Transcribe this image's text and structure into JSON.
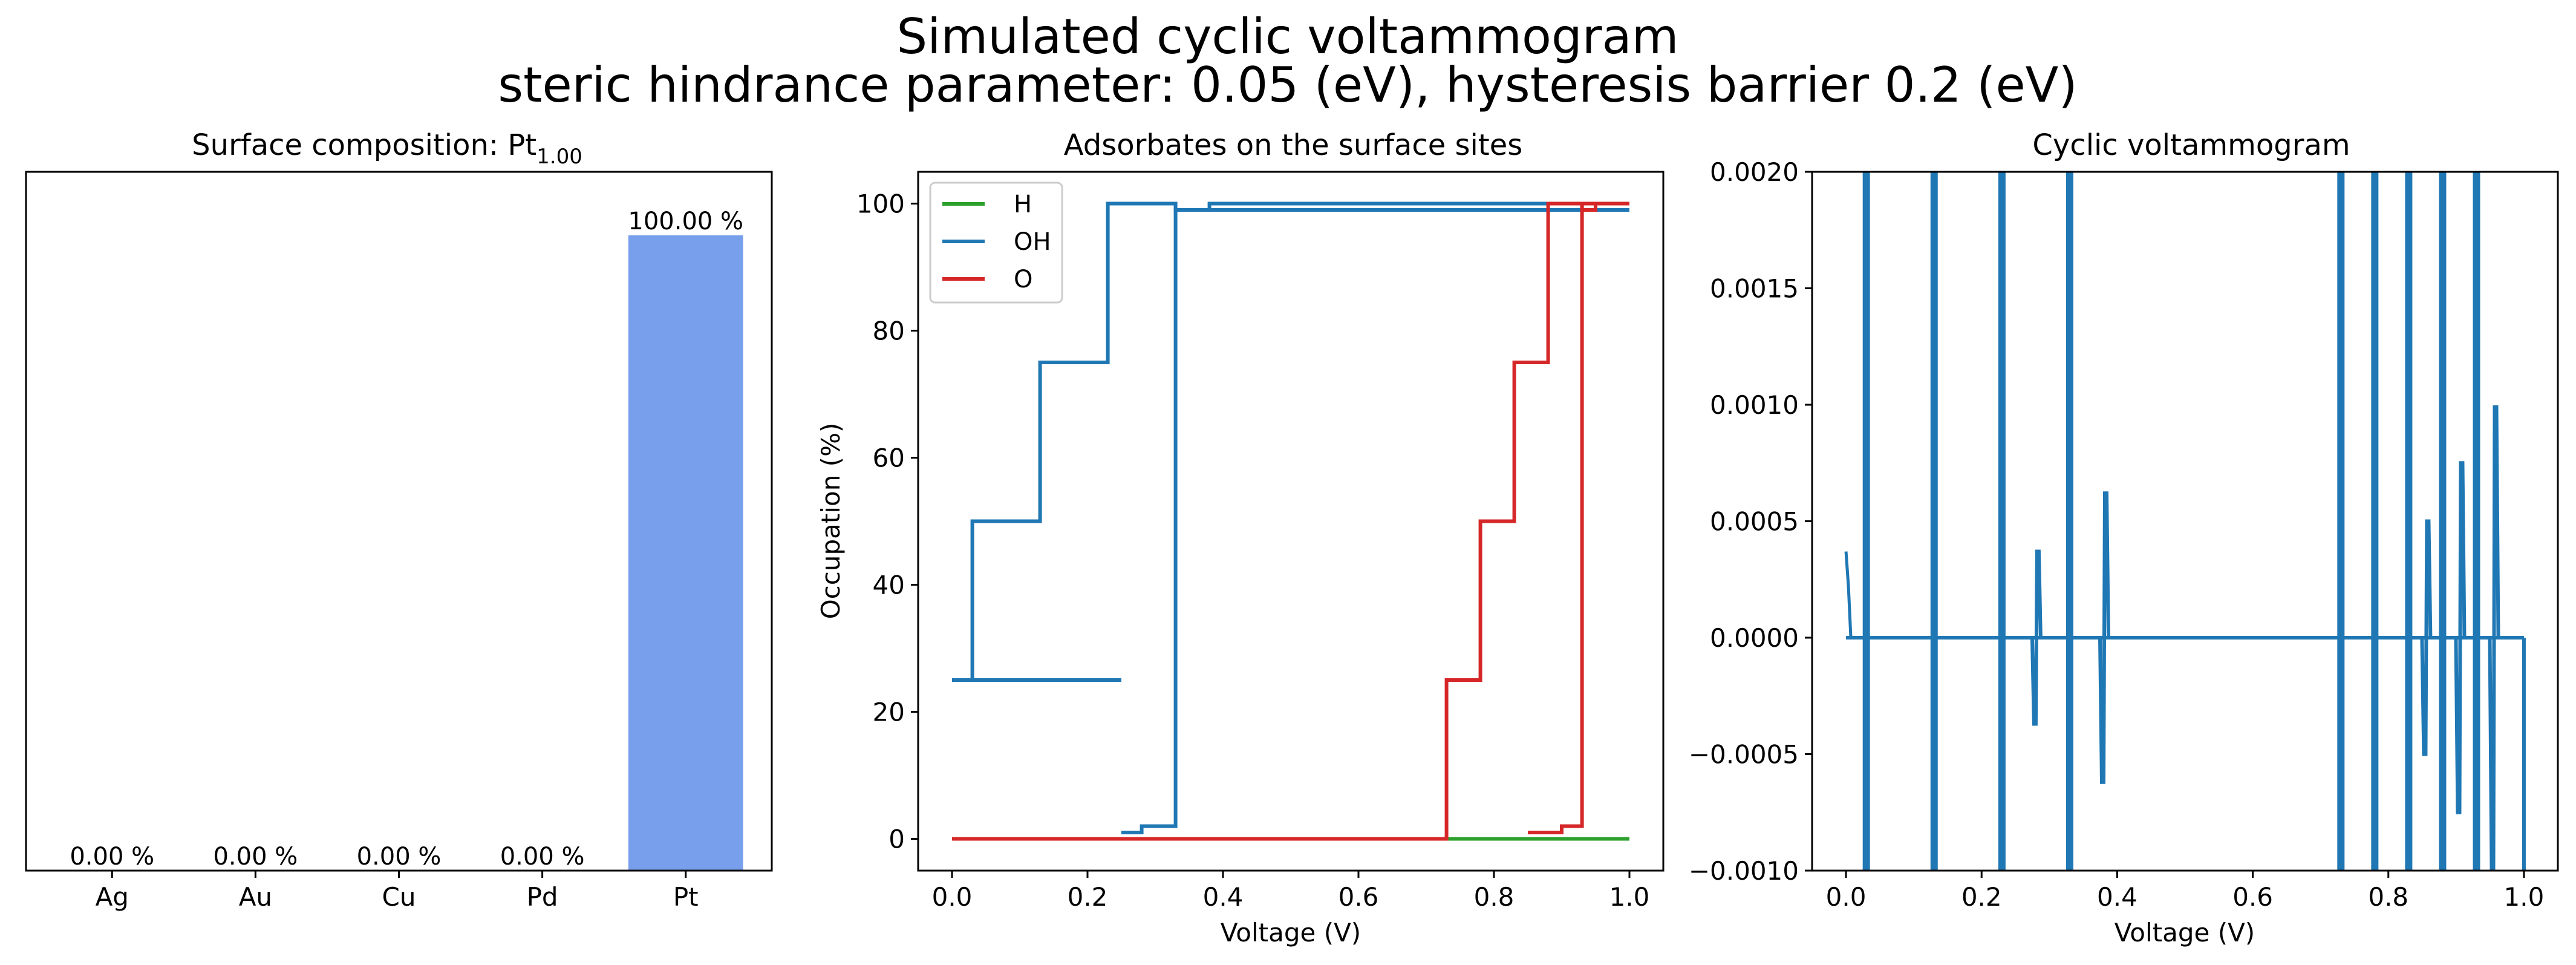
{
  "figure": {
    "title_line1": "Simulated cyclic voltammogram",
    "title_line2": "steric hindrance parameter: 0.05 (eV), hysteresis barrier 0.2 (eV)"
  },
  "colors": {
    "bar": "#779FEB",
    "H": "#2ca02c",
    "OH": "#1f77b4",
    "O": "#d62728",
    "cv": "#1f77b4"
  },
  "chart_data": [
    {
      "type": "bar",
      "title_main": "Surface composition: Pt",
      "title_sub": "1.00",
      "categories": [
        "Ag",
        "Au",
        "Cu",
        "Pd",
        "Pt"
      ],
      "values": [
        0.0,
        0.0,
        0.0,
        0.0,
        100.0
      ],
      "value_labels": [
        "0.00 %",
        "0.00 %",
        "0.00 %",
        "0.00 %",
        "100.00 %"
      ],
      "ylim": [
        0,
        110
      ],
      "yticks_visible": false,
      "xlabel": "",
      "ylabel": ""
    },
    {
      "type": "line",
      "title": "Adsorbates on the surface sites",
      "xlabel": "Voltage (V)",
      "ylabel": "Occupation (%)",
      "xlim": [
        -0.05,
        1.05
      ],
      "ylim": [
        -5,
        105
      ],
      "xticks": [
        "0.0",
        "0.2",
        "0.4",
        "0.6",
        "0.8",
        "1.0"
      ],
      "yticks": [
        "0",
        "20",
        "40",
        "60",
        "80",
        "100"
      ],
      "legend": [
        "H",
        "OH",
        "O"
      ],
      "legend_position": "upper-left",
      "series": [
        {
          "name": "H",
          "x": [
            0.0,
            1.0
          ],
          "y": [
            0,
            0
          ]
        },
        {
          "name": "OH",
          "x": [
            0.0,
            0.03,
            0.03,
            0.13,
            0.13,
            0.23,
            0.23,
            0.33,
            0.33,
            0.38,
            0.38,
            1.0
          ],
          "y": [
            25,
            25,
            50,
            50,
            75,
            75,
            100,
            100,
            99,
            99,
            100,
            100
          ]
        },
        {
          "name": "OH",
          "x": [
            0.25,
            0.28,
            0.28,
            0.33,
            0.33,
            1.0
          ],
          "y": [
            1,
            1,
            2,
            2,
            99,
            99
          ]
        },
        {
          "name": "OH",
          "x": [
            0.0,
            0.25
          ],
          "y": [
            25,
            25
          ]
        },
        {
          "name": "O",
          "x": [
            0.0,
            0.73,
            0.73,
            0.78,
            0.78,
            0.83,
            0.83,
            0.88,
            0.88,
            0.93,
            0.93,
            0.95,
            0.95,
            1.0
          ],
          "y": [
            0,
            0,
            25,
            25,
            50,
            50,
            75,
            75,
            100,
            100,
            99,
            99,
            100,
            100
          ]
        },
        {
          "name": "O",
          "x": [
            0.85,
            0.9,
            0.9,
            0.93,
            0.93,
            1.0
          ],
          "y": [
            1,
            1,
            2,
            2,
            100,
            100
          ]
        }
      ]
    },
    {
      "type": "line",
      "title": "Cyclic voltammogram",
      "xlabel": "Voltage (V)",
      "ylabel": "",
      "xlim": [
        -0.05,
        1.05
      ],
      "ylim": [
        -0.001,
        0.002
      ],
      "xticks": [
        "0.0",
        "0.2",
        "0.4",
        "0.6",
        "0.8",
        "1.0"
      ],
      "yticks": [
        "−0.0010",
        "−0.0005",
        "0.0000",
        "0.0005",
        "0.0010",
        "0.0015",
        "0.0020"
      ],
      "baseline_x": [
        0.0,
        1.0
      ],
      "initial_point": {
        "x": 0.0,
        "y": 0.00037
      },
      "full_spikes_x": [
        0.03,
        0.13,
        0.23,
        0.33,
        0.73,
        0.78,
        0.83,
        0.88,
        0.93
      ],
      "partial_peaks": [
        {
          "x": 0.28,
          "ymax": 0.00037,
          "ymin": -0.00037
        },
        {
          "x": 0.38,
          "ymax": 0.00062,
          "ymin": -0.00062
        },
        {
          "x": 0.855,
          "ymax": 0.0005,
          "ymin": -0.0005
        },
        {
          "x": 0.905,
          "ymax": 0.00075,
          "ymin": -0.00075
        },
        {
          "x": 0.955,
          "ymax": 0.00099,
          "ymin": -0.00099
        }
      ],
      "end_drop_x": 1.0
    }
  ]
}
